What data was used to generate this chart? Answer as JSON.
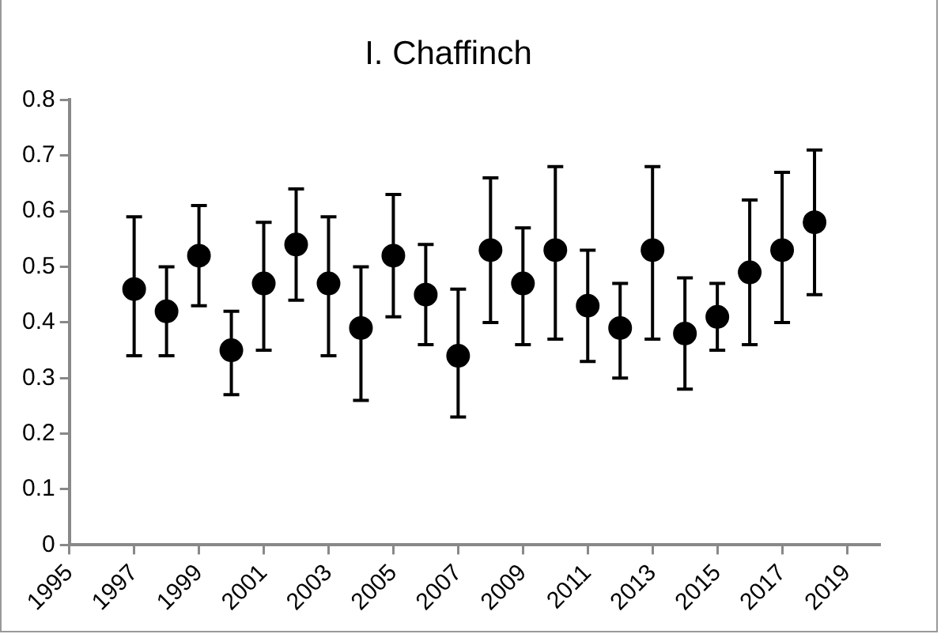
{
  "chart_data": {
    "type": "scatter",
    "title": "I. Chaffinch",
    "x": [
      1997,
      1998,
      1999,
      2000,
      2001,
      2002,
      2003,
      2004,
      2005,
      2006,
      2007,
      2008,
      2009,
      2010,
      2011,
      2012,
      2013,
      2014,
      2015,
      2016,
      2017,
      2018
    ],
    "values": [
      0.46,
      0.42,
      0.52,
      0.35,
      0.47,
      0.54,
      0.47,
      0.39,
      0.52,
      0.45,
      0.34,
      0.53,
      0.47,
      0.53,
      0.43,
      0.39,
      0.53,
      0.38,
      0.41,
      0.49,
      0.53,
      0.58
    ],
    "errors": [
      [
        0.34,
        0.59
      ],
      [
        0.34,
        0.5
      ],
      [
        0.43,
        0.61
      ],
      [
        0.27,
        0.42
      ],
      [
        0.35,
        0.58
      ],
      [
        0.44,
        0.64
      ],
      [
        0.34,
        0.59
      ],
      [
        0.26,
        0.5
      ],
      [
        0.41,
        0.63
      ],
      [
        0.36,
        0.54
      ],
      [
        0.23,
        0.46
      ],
      [
        0.4,
        0.66
      ],
      [
        0.36,
        0.57
      ],
      [
        0.37,
        0.68
      ],
      [
        0.33,
        0.53
      ],
      [
        0.3,
        0.47
      ],
      [
        0.37,
        0.68
      ],
      [
        0.28,
        0.48
      ],
      [
        0.35,
        0.47
      ],
      [
        0.36,
        0.62
      ],
      [
        0.4,
        0.67
      ],
      [
        0.45,
        0.71
      ]
    ],
    "color": "#000000",
    "marker": "circle",
    "grid": false,
    "legend": false,
    "xlim": [
      1995,
      2020
    ],
    "xticks": [
      1995,
      1997,
      1999,
      2001,
      2003,
      2005,
      2007,
      2009,
      2011,
      2013,
      2015,
      2017,
      2019
    ],
    "ylim": [
      0,
      0.8
    ],
    "yticks": [
      0,
      0.1,
      0.2,
      0.3,
      0.4,
      0.5,
      0.6,
      0.7,
      0.8
    ]
  }
}
